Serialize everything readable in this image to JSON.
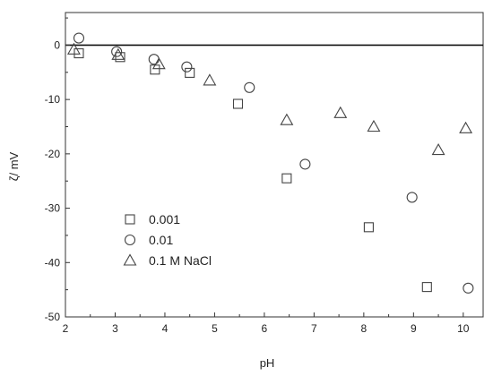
{
  "chart_data": {
    "type": "scatter",
    "xlabel": "pH",
    "ylabel": "ζ/ mV",
    "xlim": [
      2,
      10.4
    ],
    "ylim": [
      -50,
      6
    ],
    "xticks": [
      2,
      3,
      4,
      5,
      6,
      7,
      8,
      9,
      10
    ],
    "yticks": [
      0,
      -10,
      -20,
      -30,
      -40,
      -50
    ],
    "reference_line_y": 0,
    "legend_position": "lower-left",
    "grid": false,
    "series": [
      {
        "name": "0.001",
        "marker": "square",
        "points": [
          {
            "x": 2.27,
            "y": -1.5
          },
          {
            "x": 3.1,
            "y": -2.2
          },
          {
            "x": 3.8,
            "y": -4.5
          },
          {
            "x": 4.5,
            "y": -5.1
          },
          {
            "x": 5.47,
            "y": -10.8
          },
          {
            "x": 6.45,
            "y": -24.5
          },
          {
            "x": 8.1,
            "y": -33.5
          },
          {
            "x": 9.27,
            "y": -44.5
          }
        ]
      },
      {
        "name": "0.01",
        "marker": "circle",
        "points": [
          {
            "x": 2.27,
            "y": 1.3
          },
          {
            "x": 3.03,
            "y": -1.2
          },
          {
            "x": 3.78,
            "y": -2.6
          },
          {
            "x": 4.44,
            "y": -4.0
          },
          {
            "x": 5.7,
            "y": -7.8
          },
          {
            "x": 6.82,
            "y": -21.9
          },
          {
            "x": 8.97,
            "y": -28.0
          },
          {
            "x": 10.1,
            "y": -44.7
          }
        ]
      },
      {
        "name": "0.1 M NaCl",
        "marker": "triangle",
        "points": [
          {
            "x": 2.17,
            "y": -0.8
          },
          {
            "x": 3.06,
            "y": -1.8
          },
          {
            "x": 3.88,
            "y": -3.5
          },
          {
            "x": 4.9,
            "y": -6.5
          },
          {
            "x": 6.45,
            "y": -13.8
          },
          {
            "x": 7.53,
            "y": -12.5
          },
          {
            "x": 8.2,
            "y": -15.0
          },
          {
            "x": 9.5,
            "y": -19.3
          },
          {
            "x": 10.05,
            "y": -15.3
          }
        ]
      }
    ]
  }
}
